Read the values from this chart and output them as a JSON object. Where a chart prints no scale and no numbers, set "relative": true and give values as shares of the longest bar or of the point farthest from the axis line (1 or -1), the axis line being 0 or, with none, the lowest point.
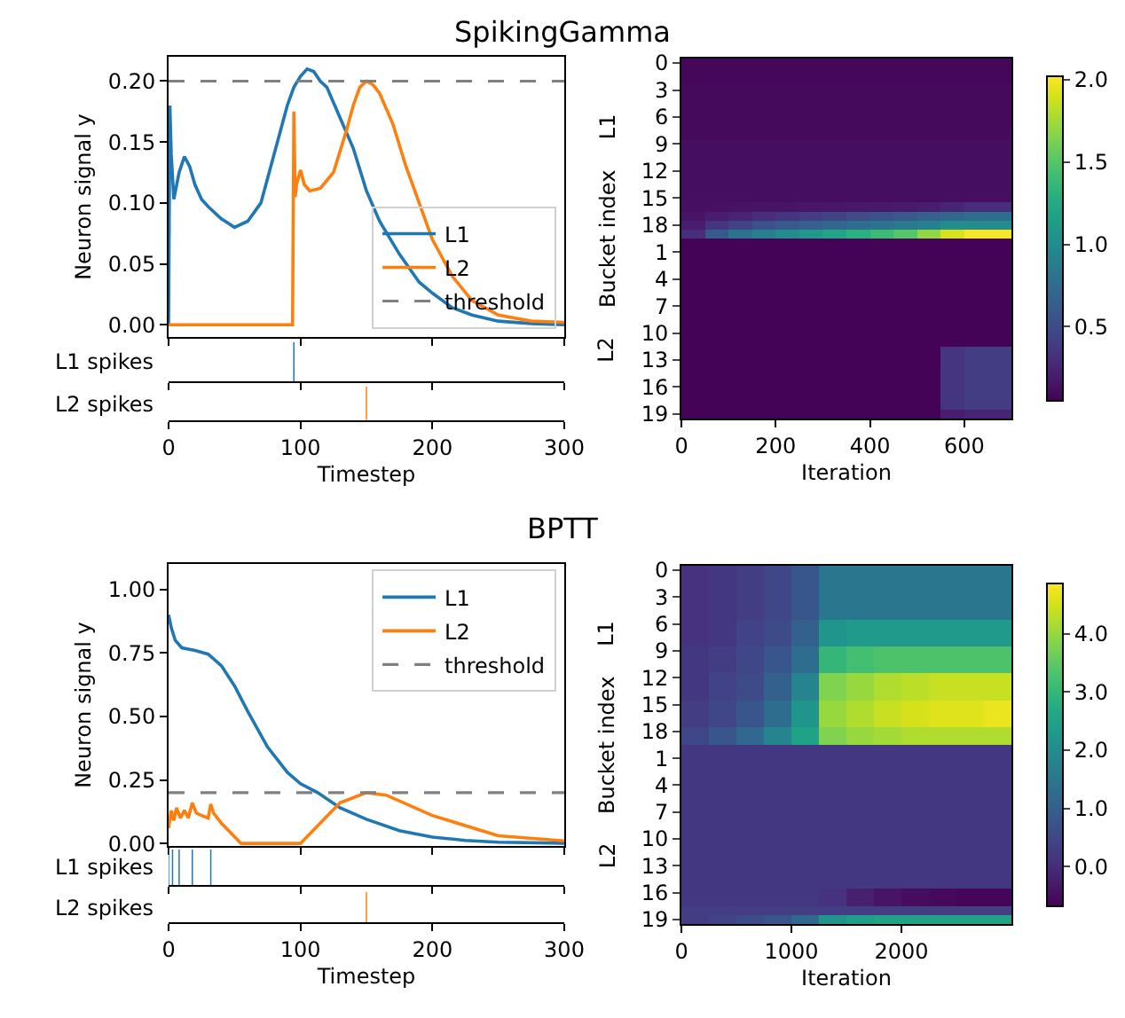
{
  "chart_data": [
    {
      "type": "line",
      "title": "SpikingGamma",
      "ylabel": "Neuron signal y",
      "xlim": [
        0,
        300
      ],
      "xticks": [
        0,
        100,
        200,
        300
      ],
      "ylim": [
        -0.01,
        0.22
      ],
      "yticks": [
        {
          "value": 0,
          "label": "0.00"
        },
        {
          "value": 0.05,
          "label": "0.05"
        },
        {
          "value": 0.1,
          "label": "0.10"
        },
        {
          "value": 0.15,
          "label": "0.15"
        },
        {
          "value": 0.2,
          "label": "0.20"
        }
      ],
      "tick_labels": "y",
      "legend": "bottom right",
      "grid": false,
      "series": [
        {
          "name": "L1",
          "color": "#1f77b4",
          "x": [
            0,
            1,
            2,
            4,
            8,
            12,
            16,
            20,
            25,
            30,
            40,
            50,
            60,
            70,
            80,
            90,
            95,
            100,
            105,
            110,
            115,
            120,
            130,
            140,
            150,
            160,
            175,
            190,
            200,
            215,
            230,
            250,
            275,
            300
          ],
          "values": [
            0,
            0.18,
            0.14,
            0.103,
            0.125,
            0.138,
            0.13,
            0.115,
            0.103,
            0.097,
            0.087,
            0.08,
            0.085,
            0.1,
            0.14,
            0.18,
            0.195,
            0.204,
            0.21,
            0.208,
            0.2,
            0.195,
            0.17,
            0.145,
            0.11,
            0.085,
            0.058,
            0.035,
            0.026,
            0.014,
            0.008,
            0.003,
            0.001,
            0
          ]
        },
        {
          "name": "L2",
          "color": "#ff7f0e",
          "x": [
            0,
            94,
            95,
            96,
            97,
            100,
            103,
            107,
            115,
            125,
            135,
            140,
            145,
            150,
            155,
            160,
            170,
            180,
            190,
            200,
            215,
            230,
            250,
            275,
            300
          ],
          "values": [
            0,
            0,
            0.175,
            0.105,
            0.115,
            0.127,
            0.115,
            0.11,
            0.112,
            0.125,
            0.16,
            0.18,
            0.195,
            0.2,
            0.197,
            0.19,
            0.165,
            0.13,
            0.1,
            0.07,
            0.04,
            0.02,
            0.008,
            0.003,
            0.002
          ]
        }
      ],
      "ref_lines": [
        {
          "axis": "y",
          "value": 0.2,
          "label": "threshold",
          "color": "#808080",
          "line_style": "dashed"
        }
      ]
    },
    {
      "type": "bar",
      "ylabel": "L1 spikes",
      "relative": true,
      "x": [
        95
      ],
      "values": [
        1
      ],
      "color": "#1f77b4",
      "xlim": [
        0,
        300
      ],
      "xticks": [
        0,
        100,
        200,
        300
      ],
      "tick_labels": false
    },
    {
      "type": "bar",
      "ylabel": "L2 spikes",
      "xlabel": "Timestep",
      "relative": true,
      "x": [
        150
      ],
      "values": [
        1
      ],
      "color": "#ff7f0e",
      "xlim": [
        0,
        300
      ],
      "xticks": [
        0,
        100,
        200,
        300
      ],
      "tick_labels": "x"
    },
    {
      "type": "heatmap",
      "xlabel": "Iteration",
      "ylabel": "Bucket index",
      "annotations": [
        "L1",
        "L2"
      ],
      "x": [
        25,
        75,
        125,
        175,
        225,
        275,
        325,
        375,
        425,
        475,
        525,
        575,
        625,
        675
      ],
      "xlim": [
        0,
        700
      ],
      "xticks": [
        0,
        200,
        400,
        600
      ],
      "y_categories": [
        "0",
        null,
        null,
        "3",
        null,
        null,
        "6",
        null,
        null,
        "9",
        null,
        null,
        "12",
        null,
        null,
        "15",
        null,
        null,
        "18",
        null,
        null,
        "1",
        null,
        null,
        "4",
        null,
        null,
        "7",
        null,
        null,
        "10",
        null,
        null,
        "13",
        null,
        null,
        "16",
        null,
        null,
        "19"
      ],
      "clim": [
        0.05,
        2.02
      ],
      "cticks": [
        {
          "value": 0.5,
          "label": "0.5"
        },
        {
          "value": 1,
          "label": "1.0"
        },
        {
          "value": 1.5,
          "label": "1.5"
        },
        {
          "value": 2,
          "label": "2.0"
        }
      ],
      "cells": [
        [
          0.08,
          0.08,
          0.08,
          0.08,
          0.08,
          0.08,
          0.08,
          0.08,
          0.08,
          0.08,
          0.08,
          0.08,
          0.08,
          0.08
        ],
        [
          0.08,
          0.08,
          0.08,
          0.08,
          0.08,
          0.08,
          0.08,
          0.08,
          0.08,
          0.08,
          0.08,
          0.08,
          0.08,
          0.08
        ],
        [
          0.08,
          0.08,
          0.08,
          0.08,
          0.08,
          0.08,
          0.08,
          0.08,
          0.08,
          0.08,
          0.08,
          0.08,
          0.08,
          0.08
        ],
        [
          0.1,
          0.1,
          0.1,
          0.1,
          0.1,
          0.1,
          0.1,
          0.1,
          0.1,
          0.1,
          0.1,
          0.1,
          0.1,
          0.1
        ],
        [
          0.1,
          0.1,
          0.1,
          0.1,
          0.1,
          0.1,
          0.1,
          0.1,
          0.1,
          0.1,
          0.1,
          0.1,
          0.1,
          0.1
        ],
        [
          0.1,
          0.1,
          0.1,
          0.1,
          0.1,
          0.1,
          0.1,
          0.1,
          0.1,
          0.1,
          0.1,
          0.1,
          0.1,
          0.1
        ],
        [
          0.1,
          0.1,
          0.1,
          0.1,
          0.1,
          0.1,
          0.1,
          0.1,
          0.1,
          0.1,
          0.1,
          0.1,
          0.1,
          0.1
        ],
        [
          0.1,
          0.1,
          0.1,
          0.1,
          0.1,
          0.1,
          0.1,
          0.1,
          0.1,
          0.1,
          0.1,
          0.1,
          0.1,
          0.1
        ],
        [
          0.1,
          0.1,
          0.1,
          0.1,
          0.1,
          0.1,
          0.1,
          0.1,
          0.1,
          0.1,
          0.1,
          0.1,
          0.1,
          0.1
        ],
        [
          0.12,
          0.12,
          0.12,
          0.12,
          0.12,
          0.12,
          0.12,
          0.12,
          0.12,
          0.12,
          0.12,
          0.12,
          0.12,
          0.12
        ],
        [
          0.12,
          0.12,
          0.12,
          0.12,
          0.12,
          0.12,
          0.12,
          0.12,
          0.12,
          0.12,
          0.12,
          0.12,
          0.12,
          0.12
        ],
        [
          0.12,
          0.12,
          0.12,
          0.12,
          0.12,
          0.12,
          0.12,
          0.12,
          0.12,
          0.12,
          0.12,
          0.12,
          0.12,
          0.12
        ],
        [
          0.12,
          0.12,
          0.12,
          0.12,
          0.12,
          0.12,
          0.12,
          0.12,
          0.12,
          0.12,
          0.12,
          0.12,
          0.12,
          0.12
        ],
        [
          0.12,
          0.12,
          0.12,
          0.12,
          0.12,
          0.12,
          0.12,
          0.12,
          0.12,
          0.12,
          0.12,
          0.12,
          0.12,
          0.12
        ],
        [
          0.12,
          0.12,
          0.12,
          0.12,
          0.12,
          0.12,
          0.12,
          0.12,
          0.12,
          0.12,
          0.12,
          0.12,
          0.12,
          0.12
        ],
        [
          0.12,
          0.12,
          0.12,
          0.12,
          0.12,
          0.12,
          0.12,
          0.12,
          0.12,
          0.12,
          0.12,
          0.12,
          0.12,
          0.12
        ],
        [
          0.13,
          0.13,
          0.14,
          0.15,
          0.15,
          0.16,
          0.17,
          0.18,
          0.18,
          0.19,
          0.2,
          0.25,
          0.3,
          0.3
        ],
        [
          0.15,
          0.2,
          0.25,
          0.3,
          0.35,
          0.4,
          0.45,
          0.5,
          0.55,
          0.6,
          0.65,
          0.7,
          0.75,
          0.75
        ],
        [
          0.2,
          0.35,
          0.45,
          0.55,
          0.6,
          0.65,
          0.7,
          0.75,
          0.8,
          0.85,
          0.9,
          1.0,
          1.0,
          1.0
        ],
        [
          0.3,
          0.6,
          0.8,
          0.9,
          1.0,
          1.1,
          1.2,
          1.3,
          1.4,
          1.5,
          1.7,
          1.9,
          2.0,
          2.0
        ],
        [
          0.06,
          0.06,
          0.06,
          0.06,
          0.06,
          0.06,
          0.06,
          0.06,
          0.06,
          0.06,
          0.06,
          0.06,
          0.06,
          0.06
        ],
        [
          0.06,
          0.06,
          0.06,
          0.06,
          0.06,
          0.06,
          0.06,
          0.06,
          0.06,
          0.06,
          0.06,
          0.06,
          0.06,
          0.06
        ],
        [
          0.06,
          0.06,
          0.06,
          0.06,
          0.06,
          0.06,
          0.06,
          0.06,
          0.06,
          0.06,
          0.06,
          0.06,
          0.06,
          0.06
        ],
        [
          0.06,
          0.06,
          0.06,
          0.06,
          0.06,
          0.06,
          0.06,
          0.06,
          0.06,
          0.06,
          0.06,
          0.06,
          0.06,
          0.06
        ],
        [
          0.06,
          0.06,
          0.06,
          0.06,
          0.06,
          0.06,
          0.06,
          0.06,
          0.06,
          0.06,
          0.06,
          0.06,
          0.06,
          0.06
        ],
        [
          0.06,
          0.06,
          0.06,
          0.06,
          0.06,
          0.06,
          0.06,
          0.06,
          0.06,
          0.06,
          0.06,
          0.06,
          0.06,
          0.06
        ],
        [
          0.06,
          0.06,
          0.06,
          0.06,
          0.06,
          0.06,
          0.06,
          0.06,
          0.06,
          0.06,
          0.06,
          0.06,
          0.06,
          0.06
        ],
        [
          0.06,
          0.06,
          0.06,
          0.06,
          0.06,
          0.06,
          0.06,
          0.06,
          0.06,
          0.06,
          0.06,
          0.06,
          0.06,
          0.06
        ],
        [
          0.06,
          0.06,
          0.06,
          0.06,
          0.06,
          0.06,
          0.06,
          0.06,
          0.06,
          0.06,
          0.06,
          0.06,
          0.06,
          0.06
        ],
        [
          0.06,
          0.06,
          0.06,
          0.06,
          0.06,
          0.06,
          0.06,
          0.06,
          0.06,
          0.06,
          0.06,
          0.06,
          0.06,
          0.06
        ],
        [
          0.06,
          0.06,
          0.06,
          0.06,
          0.06,
          0.06,
          0.06,
          0.06,
          0.06,
          0.06,
          0.06,
          0.06,
          0.06,
          0.06
        ],
        [
          0.06,
          0.06,
          0.06,
          0.06,
          0.06,
          0.06,
          0.06,
          0.06,
          0.06,
          0.06,
          0.06,
          0.06,
          0.06,
          0.06
        ],
        [
          0.06,
          0.06,
          0.06,
          0.06,
          0.06,
          0.06,
          0.06,
          0.06,
          0.06,
          0.06,
          0.06,
          0.35,
          0.4,
          0.4
        ],
        [
          0.06,
          0.06,
          0.06,
          0.06,
          0.06,
          0.06,
          0.06,
          0.06,
          0.06,
          0.06,
          0.06,
          0.35,
          0.4,
          0.4
        ],
        [
          0.06,
          0.06,
          0.06,
          0.06,
          0.06,
          0.06,
          0.06,
          0.06,
          0.06,
          0.06,
          0.06,
          0.35,
          0.4,
          0.4
        ],
        [
          0.06,
          0.06,
          0.06,
          0.06,
          0.06,
          0.06,
          0.06,
          0.06,
          0.06,
          0.06,
          0.06,
          0.35,
          0.4,
          0.4
        ],
        [
          0.06,
          0.06,
          0.06,
          0.06,
          0.06,
          0.06,
          0.06,
          0.06,
          0.06,
          0.06,
          0.06,
          0.35,
          0.4,
          0.4
        ],
        [
          0.06,
          0.06,
          0.06,
          0.06,
          0.06,
          0.06,
          0.06,
          0.06,
          0.06,
          0.06,
          0.06,
          0.35,
          0.4,
          0.4
        ],
        [
          0.06,
          0.06,
          0.06,
          0.06,
          0.06,
          0.06,
          0.06,
          0.06,
          0.06,
          0.06,
          0.06,
          0.35,
          0.4,
          0.4
        ],
        [
          0.06,
          0.06,
          0.06,
          0.06,
          0.06,
          0.06,
          0.06,
          0.06,
          0.06,
          0.06,
          0.06,
          0.2,
          0.25,
          0.25
        ]
      ]
    },
    {
      "type": "line",
      "title": "BPTT",
      "ylabel": "Neuron signal y",
      "xlim": [
        0,
        300
      ],
      "xticks": [
        0,
        100,
        200,
        300
      ],
      "ylim": [
        -0.01,
        1.1
      ],
      "yticks": [
        {
          "value": 0,
          "label": "0.00"
        },
        {
          "value": 0.25,
          "label": "0.25"
        },
        {
          "value": 0.5,
          "label": "0.50"
        },
        {
          "value": 0.75,
          "label": "0.75"
        },
        {
          "value": 1,
          "label": "1.00"
        }
      ],
      "tick_labels": "y",
      "legend": "top right",
      "grid": false,
      "series": [
        {
          "name": "L1",
          "color": "#1f77b4",
          "x": [
            0,
            2,
            5,
            10,
            20,
            30,
            40,
            50,
            60,
            75,
            90,
            100,
            113,
            130,
            150,
            175,
            200,
            225,
            250,
            300
          ],
          "values": [
            0.9,
            0.85,
            0.8,
            0.77,
            0.76,
            0.745,
            0.7,
            0.62,
            0.52,
            0.38,
            0.28,
            0.235,
            0.2,
            0.14,
            0.095,
            0.05,
            0.025,
            0.012,
            0.005,
            0.001
          ]
        },
        {
          "name": "L2",
          "color": "#ff7f0e",
          "x": [
            0,
            2,
            4,
            6,
            9,
            12,
            15,
            18,
            21,
            25,
            30,
            32,
            34,
            40,
            55,
            100,
            115,
            130,
            150,
            165,
            200,
            250,
            300
          ],
          "values": [
            0.06,
            0.13,
            0.09,
            0.14,
            0.1,
            0.13,
            0.1,
            0.16,
            0.12,
            0.11,
            0.1,
            0.155,
            0.12,
            0.08,
            0,
            0,
            0.08,
            0.16,
            0.2,
            0.19,
            0.11,
            0.03,
            0.01
          ]
        }
      ],
      "ref_lines": [
        {
          "axis": "y",
          "value": 0.2,
          "label": "threshold",
          "color": "#808080",
          "line_style": "dashed"
        }
      ]
    },
    {
      "type": "bar",
      "ylabel": "L1 spikes",
      "relative": true,
      "x": [
        0,
        3,
        8,
        18,
        32
      ],
      "values": [
        1,
        1,
        1,
        1,
        1
      ],
      "color": "#1f77b4",
      "xlim": [
        0,
        300
      ],
      "xticks": [
        0,
        100,
        200,
        300
      ],
      "tick_labels": false
    },
    {
      "type": "bar",
      "ylabel": "L2 spikes",
      "xlabel": "Timestep",
      "relative": true,
      "x": [
        150
      ],
      "values": [
        1
      ],
      "color": "#ff7f0e",
      "xlim": [
        0,
        300
      ],
      "xticks": [
        0,
        100,
        200,
        300
      ],
      "tick_labels": "x"
    },
    {
      "type": "heatmap",
      "xlabel": "Iteration",
      "ylabel": "Bucket index",
      "annotations": [
        "L1",
        "L2"
      ],
      "x": [
        125,
        375,
        625,
        875,
        1125,
        1375,
        1625,
        1875,
        2125,
        2375,
        2625,
        2875
      ],
      "xlim": [
        0,
        3000
      ],
      "xticks": [
        0,
        1000,
        2000
      ],
      "y_categories": [
        "0",
        null,
        null,
        "3",
        null,
        null,
        "6",
        null,
        null,
        "9",
        null,
        null,
        "12",
        null,
        null,
        "15",
        null,
        null,
        "18",
        null,
        null,
        "1",
        null,
        null,
        "4",
        null,
        null,
        "7",
        null,
        null,
        "10",
        null,
        null,
        "13",
        null,
        null,
        "16",
        null,
        null,
        "19"
      ],
      "clim": [
        -0.68,
        4.86
      ],
      "cticks": [
        {
          "value": 0,
          "label": "0.0"
        },
        {
          "value": 1,
          "label": "1.0"
        },
        {
          "value": 2,
          "label": "2.0"
        },
        {
          "value": 3,
          "label": "3.0"
        },
        {
          "value": 4,
          "label": "4.0"
        }
      ],
      "cells": [
        [
          0.1,
          0.2,
          0.3,
          0.5,
          0.8,
          1.5,
          1.5,
          1.5,
          1.5,
          1.5,
          1.5,
          1.5
        ],
        [
          0.1,
          0.2,
          0.3,
          0.5,
          0.8,
          1.5,
          1.5,
          1.5,
          1.5,
          1.5,
          1.5,
          1.5
        ],
        [
          0.1,
          0.2,
          0.3,
          0.5,
          0.8,
          1.5,
          1.5,
          1.5,
          1.5,
          1.5,
          1.5,
          1.5
        ],
        [
          0.1,
          0.2,
          0.3,
          0.5,
          0.8,
          1.5,
          1.5,
          1.5,
          1.5,
          1.5,
          1.5,
          1.5
        ],
        [
          0.1,
          0.2,
          0.3,
          0.5,
          0.8,
          1.5,
          1.5,
          1.5,
          1.5,
          1.5,
          1.5,
          1.5
        ],
        [
          0.1,
          0.2,
          0.3,
          0.5,
          0.8,
          1.5,
          1.5,
          1.5,
          1.5,
          1.5,
          1.5,
          1.5
        ],
        [
          0.1,
          0.2,
          0.4,
          0.6,
          1.0,
          2.2,
          2.3,
          2.3,
          2.3,
          2.3,
          2.3,
          2.3
        ],
        [
          0.1,
          0.2,
          0.4,
          0.6,
          1.0,
          2.2,
          2.3,
          2.3,
          2.3,
          2.3,
          2.3,
          2.3
        ],
        [
          0.1,
          0.2,
          0.4,
          0.6,
          1.0,
          2.2,
          2.3,
          2.3,
          2.3,
          2.3,
          2.3,
          2.3
        ],
        [
          0.2,
          0.3,
          0.5,
          0.8,
          1.3,
          3.0,
          3.2,
          3.3,
          3.3,
          3.3,
          3.3,
          3.3
        ],
        [
          0.2,
          0.3,
          0.5,
          0.8,
          1.3,
          3.0,
          3.2,
          3.3,
          3.3,
          3.3,
          3.3,
          3.3
        ],
        [
          0.2,
          0.3,
          0.5,
          0.8,
          1.3,
          3.0,
          3.2,
          3.3,
          3.3,
          3.3,
          3.3,
          3.3
        ],
        [
          0.2,
          0.4,
          0.6,
          1.0,
          1.8,
          3.8,
          4.0,
          4.2,
          4.3,
          4.4,
          4.4,
          4.4
        ],
        [
          0.2,
          0.4,
          0.6,
          1.0,
          1.8,
          3.8,
          4.0,
          4.2,
          4.3,
          4.4,
          4.4,
          4.4
        ],
        [
          0.2,
          0.4,
          0.6,
          1.0,
          1.8,
          3.8,
          4.0,
          4.2,
          4.3,
          4.4,
          4.4,
          4.4
        ],
        [
          0.3,
          0.5,
          0.8,
          1.3,
          2.2,
          4.0,
          4.2,
          4.4,
          4.5,
          4.6,
          4.6,
          4.7
        ],
        [
          0.3,
          0.5,
          0.8,
          1.3,
          2.2,
          4.0,
          4.2,
          4.4,
          4.5,
          4.6,
          4.6,
          4.7
        ],
        [
          0.3,
          0.5,
          0.8,
          1.3,
          2.2,
          4.0,
          4.2,
          4.4,
          4.5,
          4.6,
          4.6,
          4.7
        ],
        [
          0.5,
          0.8,
          1.2,
          1.8,
          2.5,
          3.8,
          4.0,
          4.1,
          4.2,
          4.2,
          4.2,
          4.2
        ],
        [
          0.5,
          0.8,
          1.2,
          1.8,
          2.5,
          3.8,
          4.0,
          4.1,
          4.2,
          4.2,
          4.2,
          4.2
        ],
        [
          0.2,
          0.2,
          0.2,
          0.2,
          0.2,
          0.2,
          0.2,
          0.2,
          0.2,
          0.2,
          0.2,
          0.2
        ],
        [
          0.2,
          0.2,
          0.2,
          0.2,
          0.2,
          0.2,
          0.2,
          0.2,
          0.2,
          0.2,
          0.2,
          0.2
        ],
        [
          0.2,
          0.2,
          0.2,
          0.2,
          0.2,
          0.2,
          0.2,
          0.2,
          0.2,
          0.2,
          0.2,
          0.2
        ],
        [
          0.2,
          0.2,
          0.2,
          0.2,
          0.2,
          0.2,
          0.2,
          0.2,
          0.2,
          0.2,
          0.2,
          0.2
        ],
        [
          0.2,
          0.2,
          0.2,
          0.2,
          0.2,
          0.2,
          0.2,
          0.2,
          0.2,
          0.2,
          0.2,
          0.2
        ],
        [
          0.2,
          0.2,
          0.2,
          0.2,
          0.2,
          0.2,
          0.2,
          0.2,
          0.2,
          0.2,
          0.2,
          0.2
        ],
        [
          0.2,
          0.2,
          0.2,
          0.2,
          0.2,
          0.2,
          0.2,
          0.2,
          0.2,
          0.2,
          0.2,
          0.2
        ],
        [
          0.2,
          0.2,
          0.2,
          0.2,
          0.2,
          0.2,
          0.2,
          0.2,
          0.2,
          0.2,
          0.2,
          0.2
        ],
        [
          0.2,
          0.2,
          0.2,
          0.2,
          0.2,
          0.2,
          0.2,
          0.2,
          0.2,
          0.2,
          0.2,
          0.2
        ],
        [
          0.2,
          0.2,
          0.2,
          0.2,
          0.2,
          0.2,
          0.2,
          0.2,
          0.2,
          0.2,
          0.2,
          0.2
        ],
        [
          0.2,
          0.2,
          0.2,
          0.2,
          0.2,
          0.2,
          0.2,
          0.2,
          0.2,
          0.2,
          0.2,
          0.2
        ],
        [
          0.2,
          0.2,
          0.2,
          0.2,
          0.2,
          0.2,
          0.2,
          0.2,
          0.2,
          0.2,
          0.2,
          0.2
        ],
        [
          0.2,
          0.2,
          0.2,
          0.2,
          0.2,
          0.2,
          0.2,
          0.2,
          0.2,
          0.2,
          0.2,
          0.2
        ],
        [
          0.2,
          0.2,
          0.2,
          0.2,
          0.2,
          0.2,
          0.2,
          0.2,
          0.2,
          0.2,
          0.2,
          0.2
        ],
        [
          0.2,
          0.2,
          0.2,
          0.2,
          0.2,
          0.2,
          0.2,
          0.2,
          0.2,
          0.2,
          0.2,
          0.2
        ],
        [
          0.2,
          0.2,
          0.2,
          0.2,
          0.2,
          0.2,
          0.2,
          0.2,
          0.2,
          0.2,
          0.2,
          0.2
        ],
        [
          0.2,
          0.2,
          0.2,
          0.2,
          0.2,
          0.1,
          -0.2,
          -0.4,
          -0.5,
          -0.55,
          -0.6,
          -0.6
        ],
        [
          0.2,
          0.2,
          0.2,
          0.2,
          0.2,
          0.1,
          -0.2,
          -0.4,
          -0.5,
          -0.55,
          -0.6,
          -0.6
        ],
        [
          0.3,
          0.3,
          0.3,
          0.3,
          0.3,
          0.3,
          0.3,
          0.3,
          0.3,
          0.3,
          0.3,
          0.3
        ],
        [
          0.3,
          0.4,
          0.6,
          0.8,
          1.2,
          2.2,
          2.4,
          2.5,
          2.5,
          2.5,
          2.5,
          2.5
        ]
      ]
    }
  ]
}
